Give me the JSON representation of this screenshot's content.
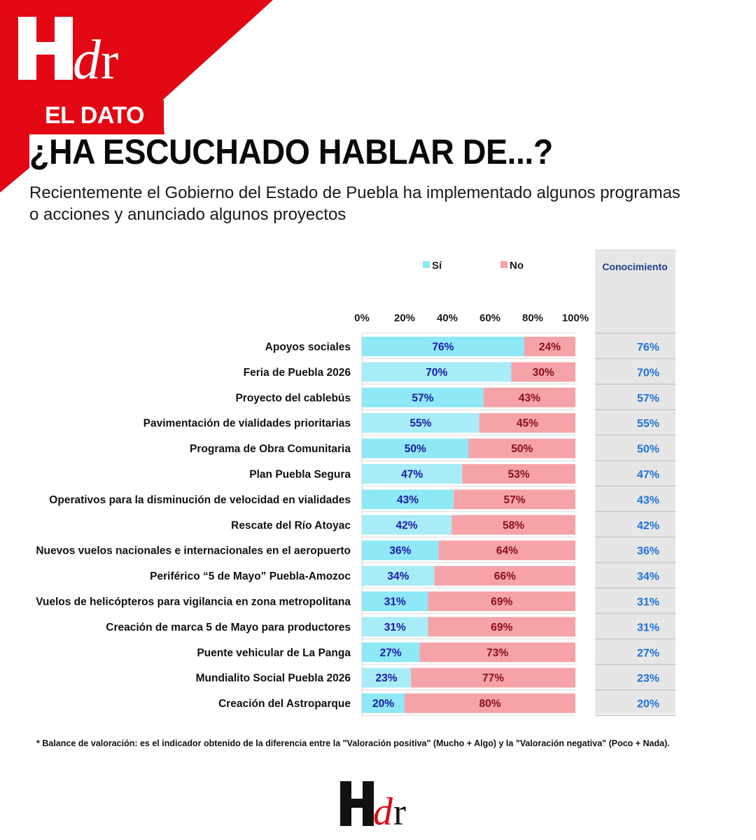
{
  "brand": {
    "name": "Hdr",
    "accent": "#e30613"
  },
  "header": {
    "tag": "EL DATO",
    "title": "¿HA ESCUCHADO HABLAR DE...?",
    "subtitle": "Recientemente el Gobierno del Estado de Puebla ha implementado algunos programas o acciones y anunciado algunos proyectos"
  },
  "chart_data": {
    "type": "bar",
    "orientation": "horizontal-stacked",
    "categories": [
      "Apoyos sociales",
      "Feria de Puebla 2026",
      "Proyecto del cablebús",
      "Pavimentación de vialidades prioritarias",
      "Programa de Obra Comunitaria",
      "Plan Puebla Segura",
      "Operativos para la disminución de velocidad en vialidades",
      "Rescate del Río Atoyac",
      "Nuevos vuelos nacionales e internacionales en el aeropuerto",
      "Periférico “5 de Mayo” Puebla-Amozoc",
      "Vuelos de helicópteros para vigilancia en zona metropolitana",
      "Creación de marca 5 de Mayo para productores",
      "Puente vehicular de La Panga",
      "Mundialito Social Puebla 2026",
      "Creación del Astroparque"
    ],
    "series": [
      {
        "name": "Sí",
        "color": "#8ee8f6",
        "label_color": "#1a1aa8",
        "values": [
          76,
          70,
          57,
          55,
          50,
          47,
          43,
          42,
          36,
          34,
          31,
          31,
          27,
          23,
          20
        ]
      },
      {
        "name": "No",
        "color": "#f5a3a8",
        "label_color": "#8a0d18",
        "values": [
          24,
          30,
          43,
          45,
          50,
          53,
          57,
          58,
          64,
          66,
          69,
          69,
          73,
          77,
          80
        ]
      }
    ],
    "xticks": [
      "0%",
      "20%",
      "40%",
      "60%",
      "80%",
      "100%"
    ],
    "xlim": [
      0,
      100
    ],
    "extra_column": {
      "title": "Conocimiento",
      "values": [
        "76%",
        "70%",
        "57%",
        "55%",
        "50%",
        "47%",
        "43%",
        "42%",
        "36%",
        "34%",
        "31%",
        "31%",
        "27%",
        "23%",
        "20%"
      ],
      "color": "#1e73d8"
    }
  },
  "footnote": "* Balance de valoración: es el indicador obtenido de la diferencia entre la \"Valoración positiva\" (Mucho + Algo) y la \"Valoración negativa\" (Poco + Nada)."
}
